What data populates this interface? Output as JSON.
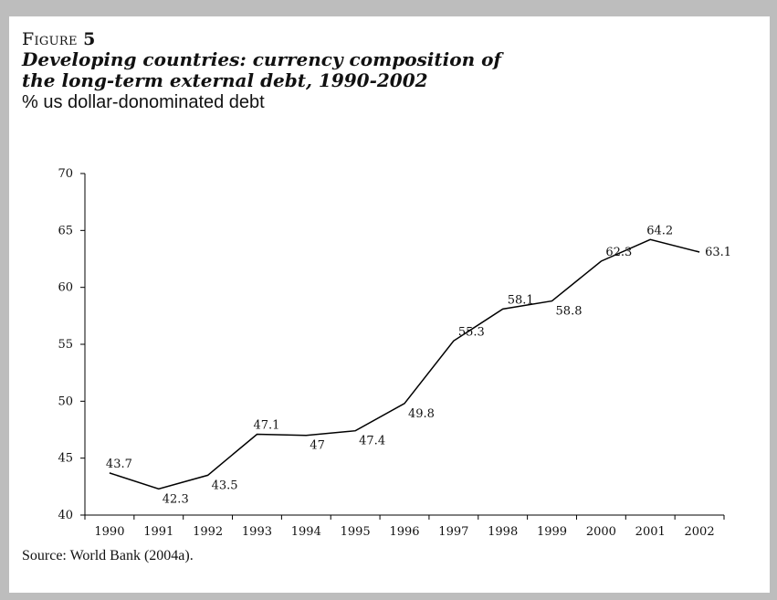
{
  "figure": {
    "label_word": "Figure",
    "label_number": "5",
    "title": "Developing countries: currency composition of the long-term external debt, 1990-2002",
    "subtitle": "% us dollar-donominated debt",
    "source": "Source: World Bank (2004a)."
  },
  "chart_data": {
    "type": "line",
    "title": "Developing countries: currency composition of the long-term external debt, 1990-2002",
    "ylabel": "% us dollar-donominated debt",
    "xlabel": "",
    "x": [
      "1990",
      "1991",
      "1992",
      "1993",
      "1994",
      "1995",
      "1996",
      "1997",
      "1998",
      "1999",
      "2000",
      "2001",
      "2002"
    ],
    "series": [
      {
        "values": [
          43.7,
          42.3,
          43.5,
          47.1,
          47,
          47.4,
          49.8,
          55.3,
          58.1,
          58.8,
          62.3,
          64.2,
          63.1
        ],
        "data_labels": [
          "43.7",
          "42.3",
          "43.5",
          "47.1",
          "47",
          "47.4",
          "49.8",
          "55.3",
          "58.1",
          "58.8",
          "62.3",
          "64.2",
          "63.1"
        ]
      }
    ],
    "ylim": [
      40,
      70
    ],
    "yticks": [
      40,
      45,
      50,
      55,
      60,
      65,
      70
    ],
    "grid": false,
    "legend": "none",
    "line_color": "#000000"
  }
}
